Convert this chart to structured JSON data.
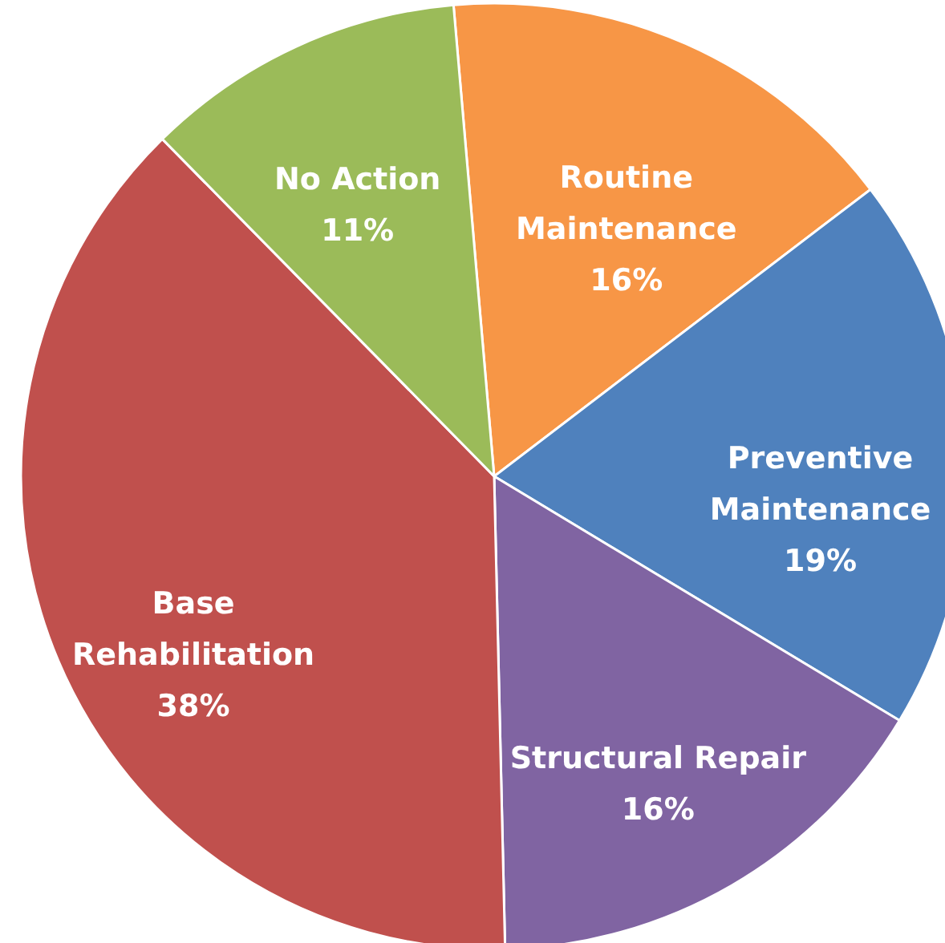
{
  "chart_data": {
    "type": "pie",
    "categories": [
      "Routine Maintenance",
      "Preventive Maintenance",
      "Structural Repair",
      "Base Rehabilitation",
      "No Action"
    ],
    "values": [
      16,
      19,
      16,
      38,
      11
    ],
    "colors": [
      "#f79646",
      "#4f81bd",
      "#8064a2",
      "#c0504d",
      "#9bbb59"
    ],
    "value_labels": [
      "16%",
      "19%",
      "16%",
      "38%",
      "11%"
    ]
  }
}
